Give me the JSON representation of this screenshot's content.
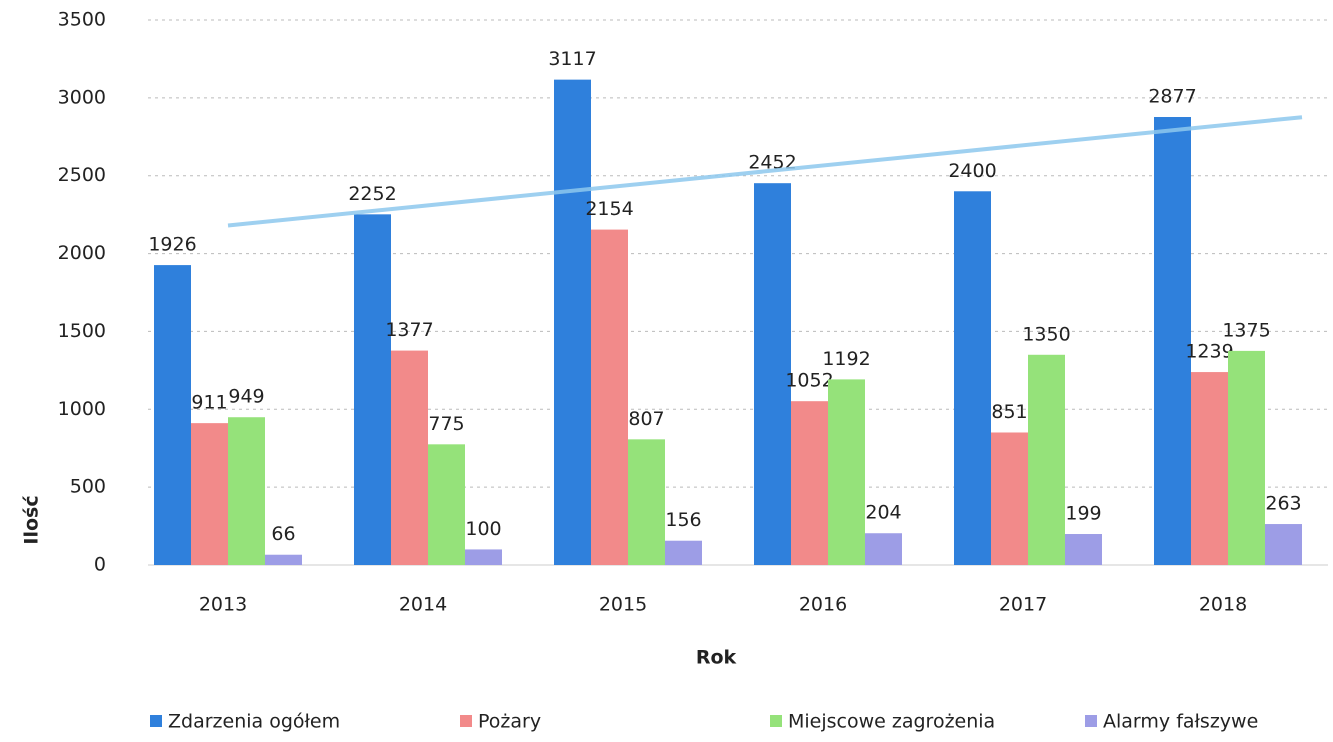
{
  "chart_data": {
    "type": "bar",
    "x_label": "Rok",
    "y_label": "Ilość",
    "categories": [
      "2013",
      "2014",
      "2015",
      "2016",
      "2017",
      "2018"
    ],
    "series": [
      {
        "name": "Zdarzenia ogółem",
        "color": "#2f80dc",
        "values": [
          1926,
          2252,
          3117,
          2452,
          2400,
          2877
        ]
      },
      {
        "name": "Pożary",
        "color": "#f28a8a",
        "values": [
          911,
          1377,
          2154,
          1052,
          851,
          1239
        ]
      },
      {
        "name": "Miejscowe zagrożenia",
        "color": "#95e27a",
        "values": [
          949,
          775,
          807,
          1192,
          1350,
          1375
        ]
      },
      {
        "name": "Alarmy fałszywe",
        "color": "#9d9de6",
        "values": [
          66,
          100,
          156,
          204,
          199,
          263
        ]
      }
    ],
    "ylim": [
      0,
      3500
    ],
    "yticks": [
      0,
      500,
      1000,
      1500,
      2000,
      2500,
      3000,
      3500
    ],
    "grid": true,
    "legend": "bottom",
    "trendline": true,
    "trendline_color": "#8ec8ee"
  }
}
